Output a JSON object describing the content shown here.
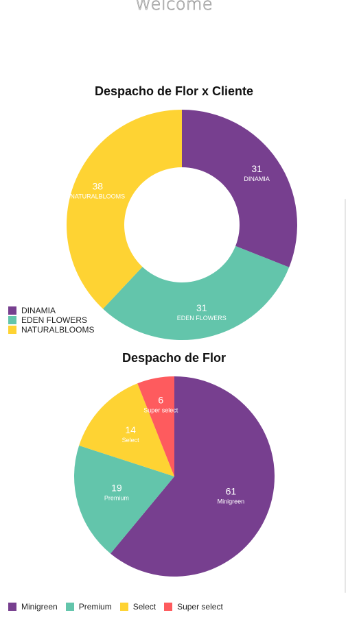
{
  "header": {
    "title": "Welcome"
  },
  "chart_data": [
    {
      "type": "pie",
      "variant": "donut",
      "title": "Despacho de Flor x Cliente",
      "categories": [
        "DINAMIA",
        "EDEN FLOWERS",
        "NATURALBLOOMS"
      ],
      "values": [
        31,
        31,
        38
      ],
      "colors": [
        "#773F8F",
        "#63C5AB",
        "#FED333"
      ],
      "legend": "bottom-left"
    },
    {
      "type": "pie",
      "title": "Despacho de Flor",
      "categories": [
        "Minigreen",
        "Premium",
        "Select",
        "Super select"
      ],
      "values": [
        61,
        19,
        14,
        6
      ],
      "colors": [
        "#773F8F",
        "#63C5AB",
        "#FED333",
        "#FE5B5E"
      ],
      "legend": "bottom"
    }
  ]
}
